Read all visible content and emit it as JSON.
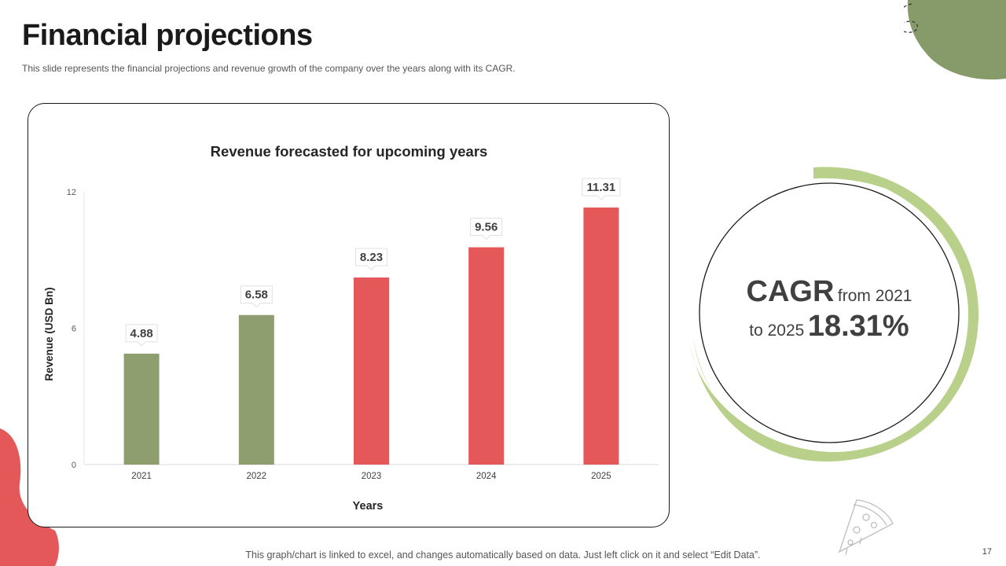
{
  "slide": {
    "title": "Financial projections",
    "subtitle": "This slide represents the financial projections and revenue growth of the company over the years along with its CAGR.",
    "footer_note": "This graph/chart is linked to excel, and changes automatically based on data. Just left click on it and select “Edit Data”.",
    "page_number": "17"
  },
  "cagr": {
    "label": "CAGR",
    "from_text": "from 2021",
    "to_text": "to 2025",
    "value": "18.31%"
  },
  "colors": {
    "green": "#8f9e6e",
    "red": "#e5585a",
    "light_green": "#b8d08a",
    "blob_green": "#879a6a",
    "blob_red": "#e5585a"
  },
  "chart_data": {
    "type": "bar",
    "title": "Revenue forecasted for upcoming years",
    "xlabel": "Years",
    "ylabel": "Revenue (USD Bn)",
    "categories": [
      "2021",
      "2022",
      "2023",
      "2024",
      "2025"
    ],
    "values": [
      4.88,
      6.58,
      8.23,
      9.56,
      11.31
    ],
    "value_labels": [
      "4.88",
      "6.58",
      "8.23",
      "9.56",
      "11.31"
    ],
    "bar_colors": [
      "green",
      "green",
      "red",
      "red",
      "red"
    ],
    "yticks": [
      "0",
      "6",
      "12"
    ],
    "ylim": [
      0,
      12
    ],
    "grid": false,
    "legend": "none"
  }
}
